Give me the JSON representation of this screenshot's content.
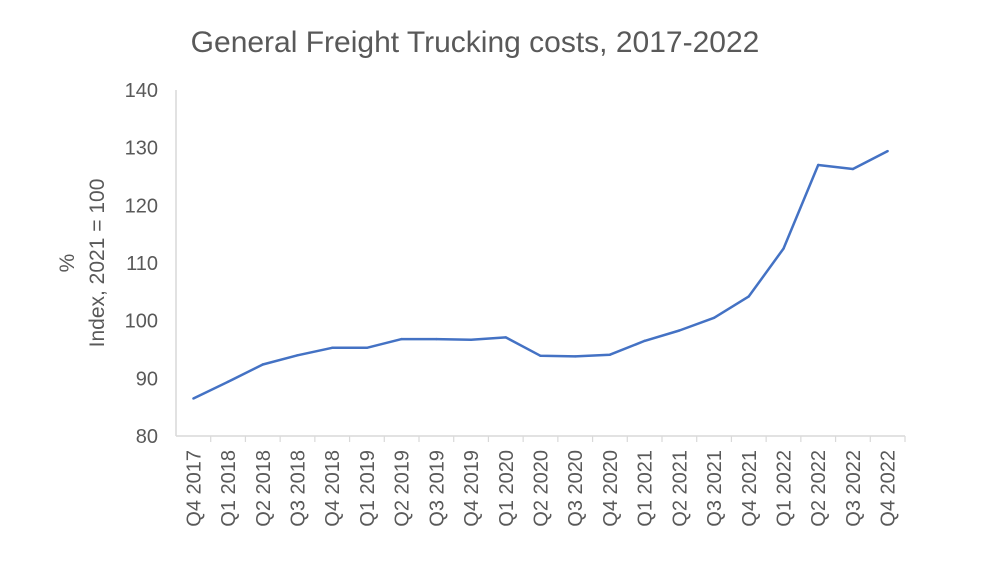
{
  "chart_data": {
    "type": "line",
    "title": "General Freight Trucking costs, 2017-2022",
    "ylabel_line1": "%",
    "ylabel_line2": "Index, 2021 = 100",
    "xlabel": "",
    "ylim": [
      80,
      140
    ],
    "yticks": [
      80,
      90,
      100,
      110,
      120,
      130,
      140
    ],
    "grid": false,
    "legend": "none",
    "categories": [
      "Q4 2017",
      "Q1 2018",
      "Q2 2018",
      "Q3 2018",
      "Q4 2018",
      "Q1 2019",
      "Q2 2019",
      "Q3 2019",
      "Q4 2019",
      "Q1 2020",
      "Q2 2020",
      "Q3 2020",
      "Q4 2020",
      "Q1 2021",
      "Q2 2021",
      "Q3 2021",
      "Q4 2021",
      "Q1 2022",
      "Q2 2022",
      "Q3 2022",
      "Q4 2022"
    ],
    "series": [
      {
        "values": [
          86.5,
          89.4,
          92.4,
          94.0,
          95.3,
          95.3,
          96.8,
          96.8,
          96.7,
          97.1,
          93.9,
          93.8,
          94.1,
          96.5,
          98.3,
          100.5,
          104.2,
          112.5,
          127.0,
          126.3,
          129.4
        ]
      }
    ],
    "colors": {
      "line": "#4472c4",
      "axis": "#d9d9d9",
      "text": "#595959"
    }
  }
}
